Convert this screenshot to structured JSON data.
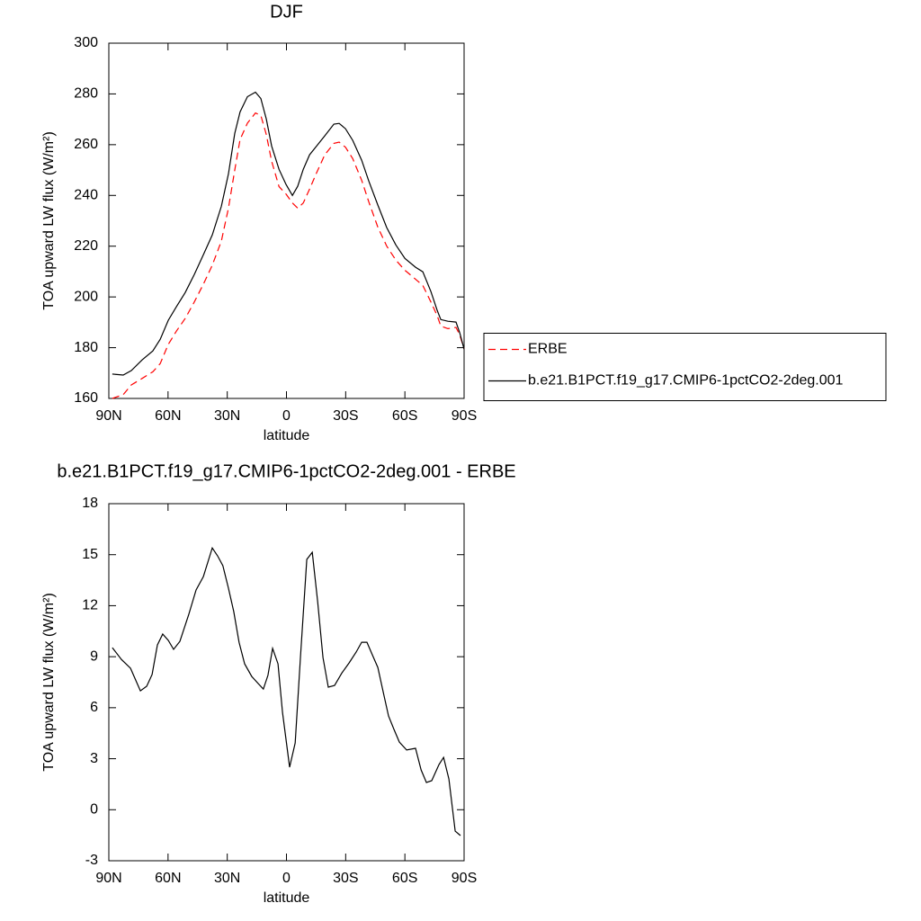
{
  "chart_data": [
    {
      "type": "line",
      "title": "DJF",
      "x_label": "latitude",
      "y_label": "TOA upward LW flux (W/m²)",
      "x": [
        88.2,
        82.7,
        78.6,
        73.1,
        67.7,
        64.0,
        59.9,
        55.8,
        51.3,
        46.7,
        42.1,
        37.6,
        33.0,
        29.4,
        26.2,
        23.5,
        19.8,
        15.7,
        13.0,
        10.2,
        7.5,
        3.8,
        0.2,
        -3.0,
        -5.7,
        -8.5,
        -11.7,
        -15.3,
        -19.4,
        -24.0,
        -26.7,
        -29.9,
        -33.6,
        -38.1,
        -41.7,
        -46.3,
        -50.8,
        -55.4,
        -60.0,
        -65.4,
        -69.1,
        -73.2,
        -76.4,
        -78.2,
        -81.8,
        -85.9,
        -87.8,
        -90
      ],
      "series": [
        {
          "name": "ERBE",
          "color": "#ff0000",
          "dashed": true,
          "values": [
            160.0,
            161.5,
            165.3,
            167.9,
            170.5,
            173.7,
            181.3,
            186.5,
            191.5,
            198,
            205,
            212.5,
            222,
            235,
            250,
            262,
            268.5,
            272.5,
            271.5,
            264,
            253.5,
            243.5,
            240.5,
            237,
            235,
            237,
            242.5,
            249,
            256,
            260.5,
            261,
            259,
            254.5,
            246,
            237.5,
            227.5,
            220,
            214.5,
            210.5,
            207,
            204.5,
            198,
            192.5,
            188.5,
            187.5,
            188,
            185,
            179.5
          ]
        },
        {
          "name": "b.e21.B1PCT.f19_g17.CMIP6-1pctCO2-2deg.001",
          "color": "#000000",
          "dashed": false,
          "values": [
            169.6,
            169.2,
            171.0,
            175.2,
            178.7,
            183.3,
            190.8,
            196.1,
            201.7,
            208.8,
            216.6,
            224.4,
            235.7,
            248.5,
            264.4,
            272.9,
            278.9,
            280.7,
            278.2,
            270.1,
            259.5,
            250.3,
            244.3,
            240.0,
            243.6,
            250.3,
            256.0,
            259.5,
            263.5,
            268.1,
            268.4,
            266.3,
            261.7,
            253.9,
            245.7,
            236.2,
            227.3,
            220.5,
            215.2,
            211.7,
            209.9,
            202.1,
            194.6,
            191.1,
            190.4,
            190.1,
            185.8,
            179.4
          ]
        }
      ],
      "xlim": [
        90,
        -90
      ],
      "xticks": [
        {
          "value": 90,
          "label": "90N"
        },
        {
          "value": 60,
          "label": "60N"
        },
        {
          "value": 30,
          "label": "30N"
        },
        0,
        {
          "value": -30,
          "label": "30S"
        },
        {
          "value": -60,
          "label": "60S"
        },
        {
          "value": -90,
          "label": "90S"
        }
      ],
      "ylim": [
        160,
        300
      ],
      "yticks": [
        160,
        180,
        200,
        220,
        240,
        260,
        280,
        300
      ],
      "legend": "right"
    },
    {
      "type": "line",
      "title": "b.e21.B1PCT.f19_g17.CMIP6-1pctCO2-2deg.001 - ERBE",
      "x_label": "latitude",
      "y_label": "TOA upward LW flux (W/m²)",
      "x": [
        88.2,
        83.6,
        79.0,
        74.0,
        70.8,
        68.1,
        65.4,
        62.7,
        59.9,
        57.2,
        54.0,
        49.5,
        45.8,
        42.1,
        37.6,
        34.9,
        32.2,
        29.4,
        26.7,
        24.0,
        21.2,
        17.6,
        13.9,
        11.7,
        9.4,
        7.0,
        4.3,
        2.0,
        -1.6,
        -4.4,
        -7.1,
        -10.3,
        -13.1,
        -15.8,
        -18.5,
        -21.2,
        -24.4,
        -28.1,
        -31.7,
        -35.3,
        -38.1,
        -40.8,
        -43.5,
        -46.3,
        -49.0,
        -51.7,
        -54.5,
        -57.2,
        -60.9,
        -65.4,
        -68.2,
        -70.9,
        -73.6,
        -77.3,
        -79.6,
        -82.3,
        -85.5,
        -88.2
      ],
      "color": "#000000",
      "values": [
        9.53,
        8.84,
        8.32,
        6.99,
        7.26,
        7.95,
        9.69,
        10.33,
        9.96,
        9.43,
        9.9,
        11.49,
        12.92,
        13.71,
        15.4,
        14.93,
        14.35,
        13.03,
        11.65,
        9.85,
        8.58,
        7.84,
        7.37,
        7.1,
        7.9,
        9.49,
        8.58,
        5.73,
        2.5,
        3.93,
        9.01,
        14.72,
        15.14,
        12.23,
        8.95,
        7.21,
        7.31,
        8.05,
        8.63,
        9.27,
        9.85,
        9.85,
        9.11,
        8.37,
        6.94,
        5.51,
        4.72,
        3.98,
        3.51,
        3.61,
        2.34,
        1.6,
        1.71,
        2.66,
        3.08,
        1.81,
        -1.26,
        -1.52
      ],
      "xlim": [
        90,
        -90
      ],
      "xticks": [
        {
          "value": 90,
          "label": "90N"
        },
        {
          "value": 60,
          "label": "60N"
        },
        {
          "value": 30,
          "label": "30N"
        },
        0,
        {
          "value": -30,
          "label": "30S"
        },
        {
          "value": -60,
          "label": "60S"
        },
        {
          "value": -90,
          "label": "90S"
        }
      ],
      "ylim": [
        -3,
        18
      ],
      "yticks": [
        -3,
        0,
        3,
        6,
        9,
        12,
        15,
        18
      ]
    }
  ]
}
